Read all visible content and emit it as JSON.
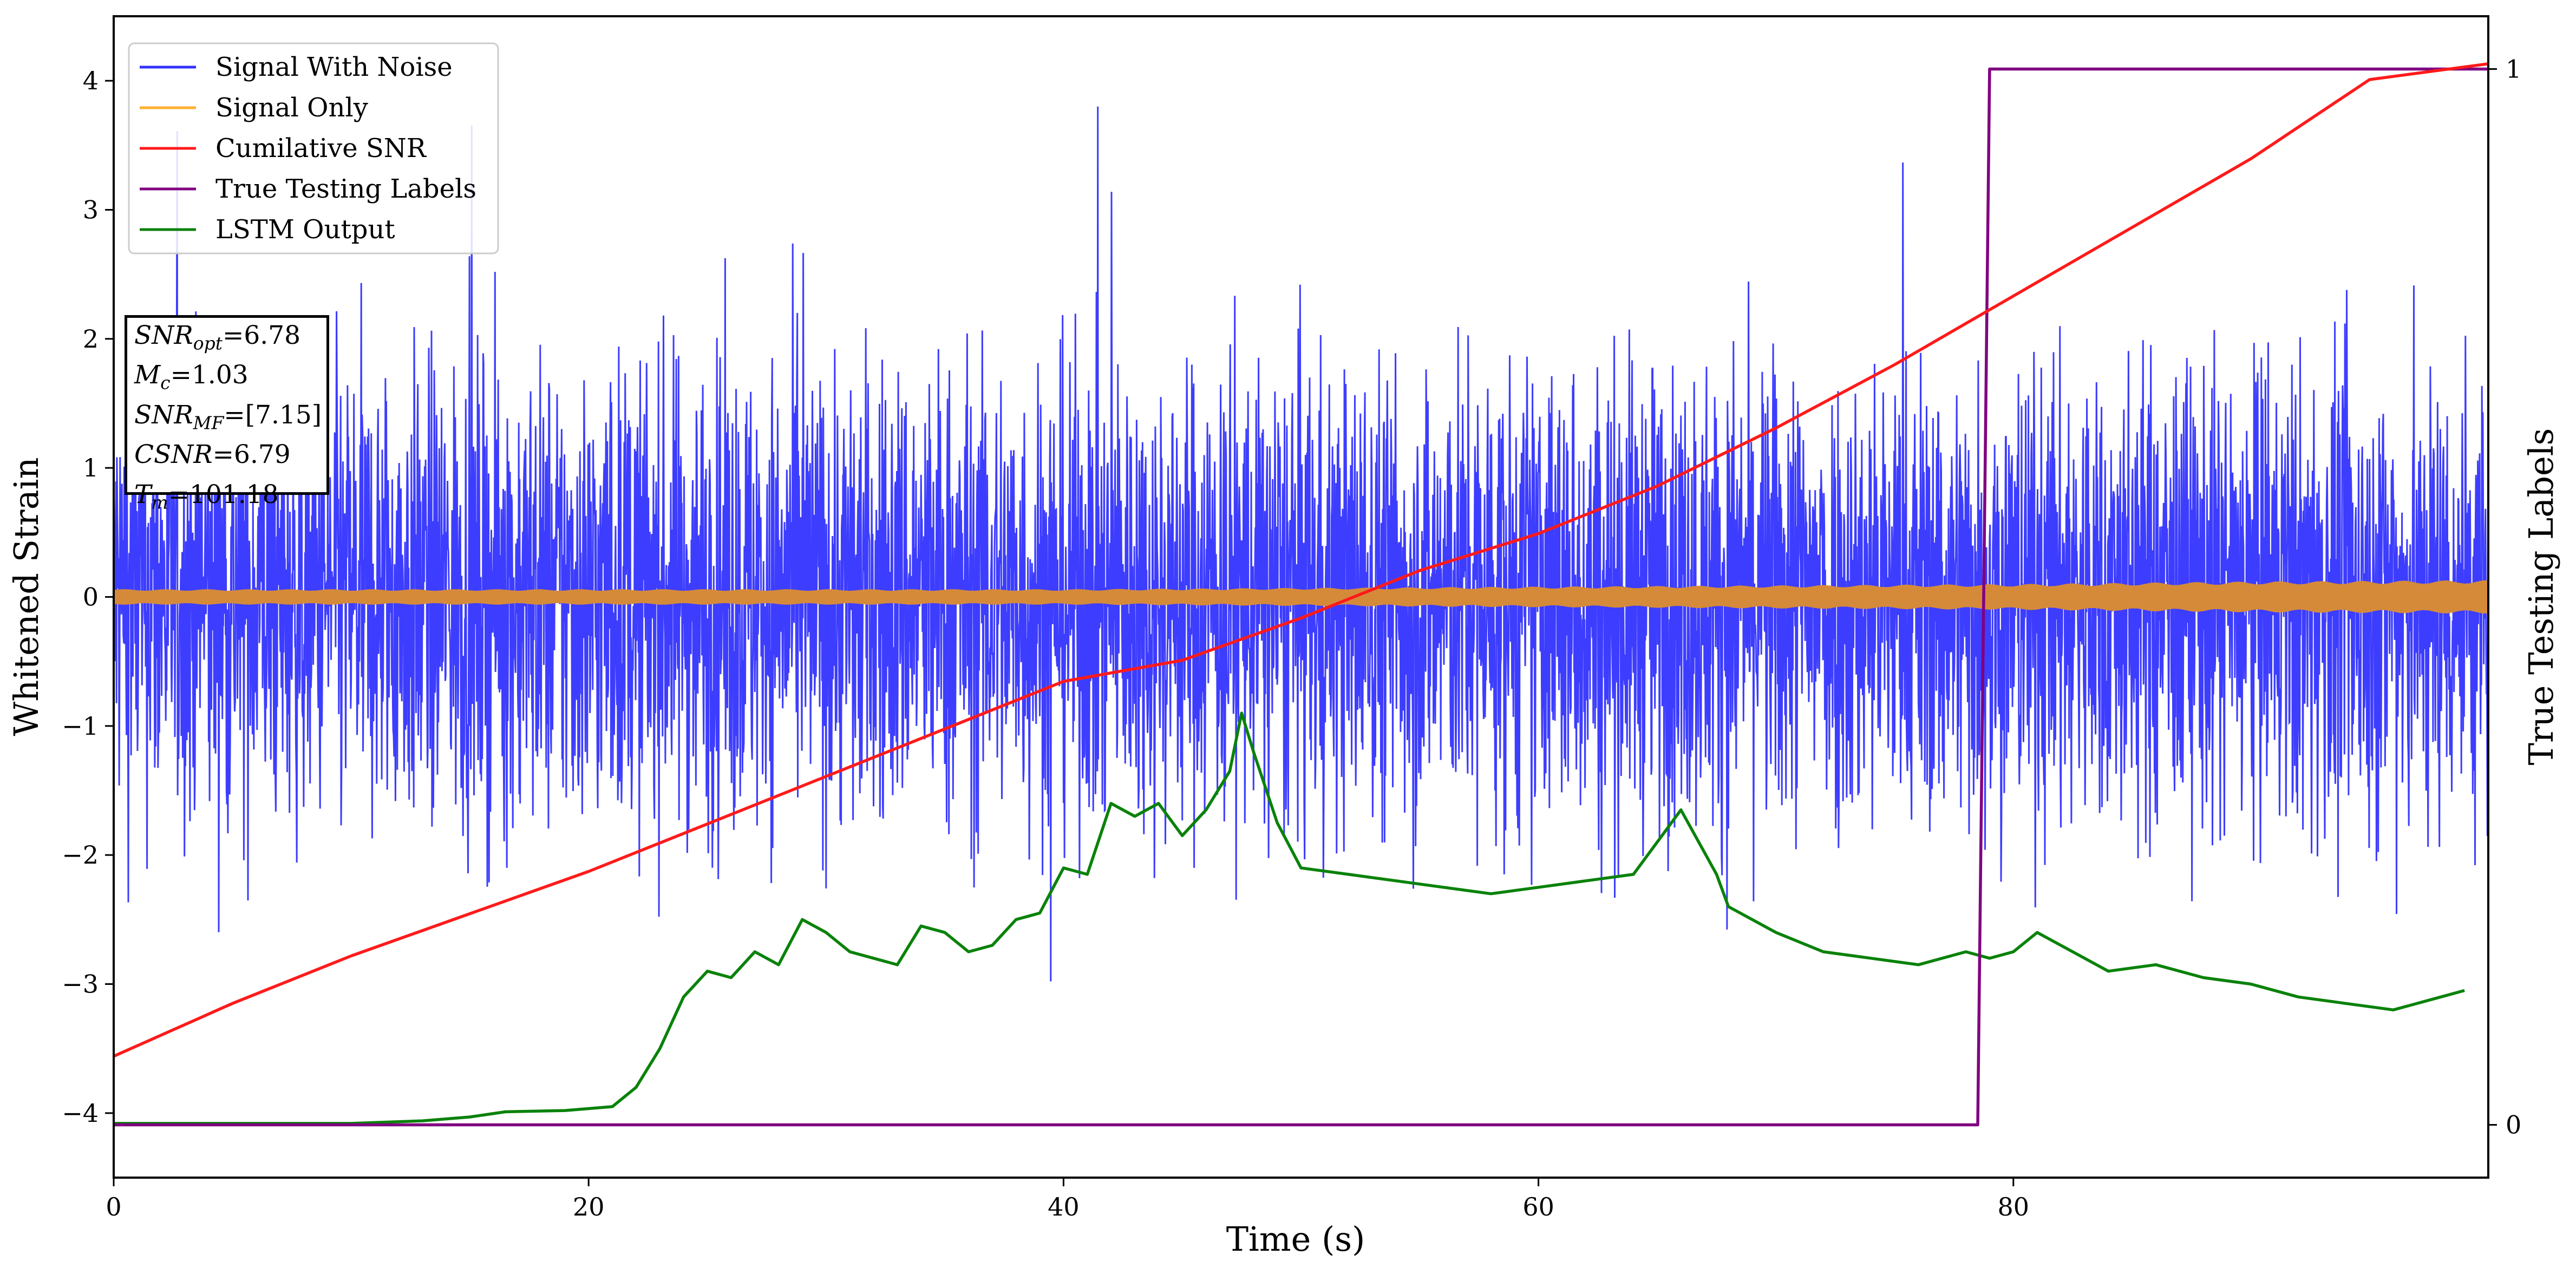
{
  "chart_data": {
    "type": "line",
    "title": "",
    "xlabel": "Time (s)",
    "ylabel": "Whitened Strain",
    "y2label": "True Testing Labels",
    "xlim": [
      0,
      100
    ],
    "ylim": [
      -4.5,
      4.5
    ],
    "y2lim": [
      -0.05,
      1.05
    ],
    "x_ticks": [
      0,
      20,
      40,
      60,
      80
    ],
    "y_ticks": [
      -4,
      -3,
      -2,
      -1,
      0,
      1,
      2,
      3,
      4
    ],
    "y2_ticks": [
      0,
      1
    ],
    "legend_position": "top-left",
    "colors": {
      "signal_with_noise": "#3333ff",
      "signal_only": "#ffb030",
      "signal_only_band": "#d58a3a",
      "cumulative_snr": "#ff1a1a",
      "true_labels": "#800080",
      "lstm_output": "#0a820a"
    },
    "series": [
      {
        "name": "Signal With Noise",
        "axis": "left",
        "note": "dense noise, approx std 1 around 0",
        "envelope_x": [
          0,
          100
        ],
        "envelope_y": [
          -2.5,
          2.5
        ]
      },
      {
        "name": "Signal Only",
        "axis": "left",
        "x": [
          0,
          20,
          40,
          50,
          60,
          70,
          80,
          90,
          100
        ],
        "amplitude": [
          0.06,
          0.06,
          0.06,
          0.07,
          0.08,
          0.09,
          0.1,
          0.12,
          0.13
        ]
      },
      {
        "name": "Cumilative SNR",
        "axis": "right",
        "x": [
          0,
          5,
          10,
          15,
          20,
          25,
          30,
          35,
          40,
          45,
          50,
          55,
          60,
          65,
          70,
          75,
          80,
          85,
          90,
          95,
          100
        ],
        "y": [
          0.065,
          0.115,
          0.16,
          0.2,
          0.24,
          0.285,
          0.33,
          0.375,
          0.42,
          0.44,
          0.48,
          0.525,
          0.56,
          0.605,
          0.66,
          0.72,
          0.785,
          0.85,
          0.915,
          0.99,
          1.005
        ]
      },
      {
        "name": "True Testing Labels",
        "axis": "right",
        "x": [
          0,
          78.5,
          79.0,
          100
        ],
        "y": [
          0,
          0,
          1,
          1
        ]
      },
      {
        "name": "LSTM Output",
        "axis": "left",
        "x": [
          0,
          10,
          13,
          15,
          16.5,
          19,
          21,
          22,
          23,
          24,
          25,
          26,
          27,
          28,
          29,
          30,
          31,
          32,
          33,
          34,
          35,
          36,
          37,
          38,
          39,
          40,
          41,
          42,
          43,
          44,
          45,
          46,
          47,
          47.5,
          48,
          49,
          50,
          52,
          54,
          56,
          58,
          60,
          62,
          64,
          66,
          67.5,
          68,
          70,
          72,
          74,
          76,
          78,
          79,
          80,
          81,
          82,
          84,
          86,
          88,
          90,
          92,
          94,
          96,
          98,
          99
        ],
        "y": [
          -4.08,
          -4.08,
          -4.06,
          -4.03,
          -3.99,
          -3.98,
          -3.95,
          -3.8,
          -3.5,
          -3.1,
          -2.9,
          -2.95,
          -2.75,
          -2.85,
          -2.5,
          -2.6,
          -2.75,
          -2.8,
          -2.85,
          -2.55,
          -2.6,
          -2.75,
          -2.7,
          -2.5,
          -2.45,
          -2.1,
          -2.15,
          -1.6,
          -1.7,
          -1.6,
          -1.85,
          -1.65,
          -1.35,
          -0.9,
          -1.2,
          -1.75,
          -2.1,
          -2.15,
          -2.2,
          -2.25,
          -2.3,
          -2.25,
          -2.2,
          -2.15,
          -1.65,
          -2.15,
          -2.4,
          -2.6,
          -2.75,
          -2.8,
          -2.85,
          -2.75,
          -2.8,
          -2.75,
          -2.6,
          -2.7,
          -2.9,
          -2.85,
          -2.95,
          -3.0,
          -3.1,
          -3.15,
          -3.2,
          -3.1,
          -3.05
        ]
      }
    ],
    "annotation_box": {
      "lines": [
        {
          "label": "SNR",
          "sub": "opt",
          "value": "=6.78"
        },
        {
          "label": "M",
          "sub": "c",
          "value": "=1.03"
        },
        {
          "label": "SNR",
          "sub": "MF",
          "value": "=[7.15]"
        },
        {
          "label": "CSNR",
          "sub": "",
          "value": "=6.79"
        },
        {
          "label": "T",
          "sub": "m",
          "value": "=101.18"
        }
      ]
    }
  }
}
